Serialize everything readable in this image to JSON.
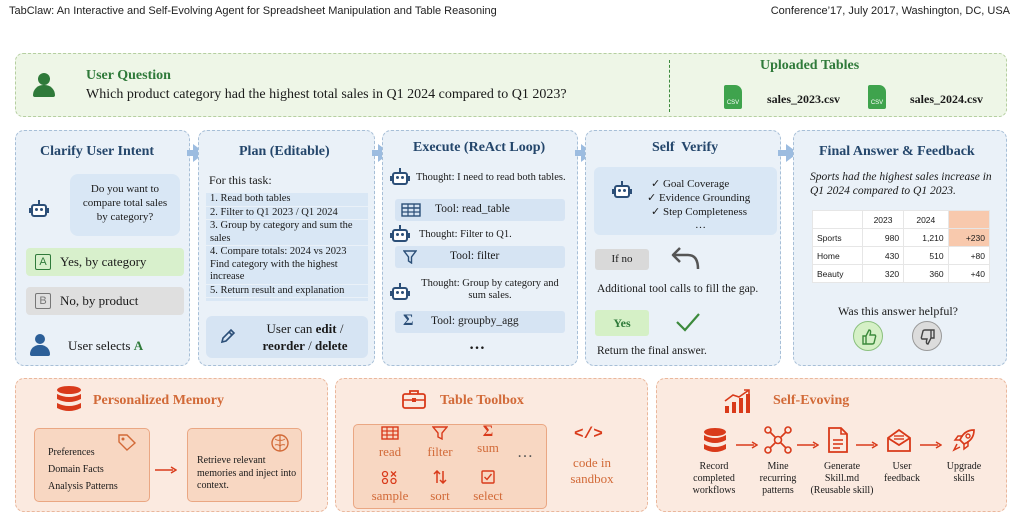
{
  "header": {
    "left": "TabClaw: An Interactive and Self-Evolving Agent for Spreadsheet Manipulation and Table Reasoning",
    "right": "Conference’17, July 2017, Washington, DC, USA"
  },
  "question": {
    "title": "User Question",
    "text": "Which product category had the highest total sales in Q1 2024 compared to Q1 2023?",
    "uploads_title": "Uploaded Tables",
    "files": [
      {
        "badge": "CSV",
        "name": "sales_2023.csv"
      },
      {
        "badge": "CSV",
        "name": "sales_2024.csv"
      }
    ]
  },
  "clarify": {
    "title": "Clarify User Intent",
    "bubble": "Do you want to compare total sales by category?",
    "options": [
      {
        "letter": "A",
        "label": "Yes, by category"
      },
      {
        "letter": "B",
        "label": "No, by product"
      }
    ],
    "selection_prefix": "User selects ",
    "selection_value": "A"
  },
  "plan": {
    "title": "Plan (Editable)",
    "intro": "For this task:",
    "steps": [
      "1. Read both tables",
      "2. Filter to Q1 2023 / Q1 2024",
      "3. Group by category and sum the sales",
      "4. Compare totals: 2024 vs 2023 Find category with the highest increase",
      "5. Return result and explanation"
    ],
    "edit_prefix": "User can ",
    "edit_bold1": "edit",
    "edit_sep1": " /",
    "edit_bold2": "reorder",
    "edit_sep2": " / ",
    "edit_bold3": "delete"
  },
  "execute": {
    "title": "Execute (ReAct Loop)",
    "thoughts": [
      "Thought: I need to read both tables.",
      "Thought: Filter to Q1.",
      "Thought: Group by category and sum sales."
    ],
    "tools": [
      "Tool: read_table",
      "Tool: filter",
      "Tool: groupby_agg"
    ],
    "ellipsis": "…"
  },
  "verify": {
    "title": "Self  Verify",
    "checks": [
      "✓ Goal Coverage",
      "✓ Evidence Grounding",
      "✓ Step Completeness",
      "…"
    ],
    "no_label": "If no",
    "no_text": "Additional tool calls to fill the gap.",
    "yes_label": "Yes",
    "yes_text": "Return the final answer."
  },
  "answer": {
    "title": "Final Answer & Feedback",
    "text": "Sports had the highest sales increase in Q1 2024 compared to Q1 2023.",
    "table": {
      "columns": [
        "",
        "2023",
        "2024",
        ""
      ],
      "rows": [
        [
          "Sports",
          "980",
          "1,210",
          "+230"
        ],
        [
          "Home",
          "430",
          "510",
          "+80"
        ],
        [
          "Beauty",
          "320",
          "360",
          "+40"
        ]
      ]
    },
    "question": "Was this answer helpful?"
  },
  "memory": {
    "title": "Personalized Memory",
    "items": [
      "Preferences",
      "Domain Facts",
      "Analysis Patterns"
    ],
    "retrieve": "Retrieve relevant memories and inject into context."
  },
  "toolbox": {
    "title": "Table Toolbox",
    "tools": [
      "read",
      "filter",
      "sum",
      "sample",
      "sort",
      "select"
    ],
    "ellipsis": "…",
    "code": "code in sandbox"
  },
  "evolve": {
    "title": "Self-Evoving",
    "steps": [
      "Record completed workflows",
      "Mine recurring patterns",
      "Generate Skill.md (Reusable skill)",
      "User feedback",
      "Upgrade skills"
    ]
  },
  "colors": {
    "green": "#2f7a3a",
    "blue_title": "#24466b",
    "orange": "#d26a38",
    "highlight": "#f8c9ad"
  }
}
